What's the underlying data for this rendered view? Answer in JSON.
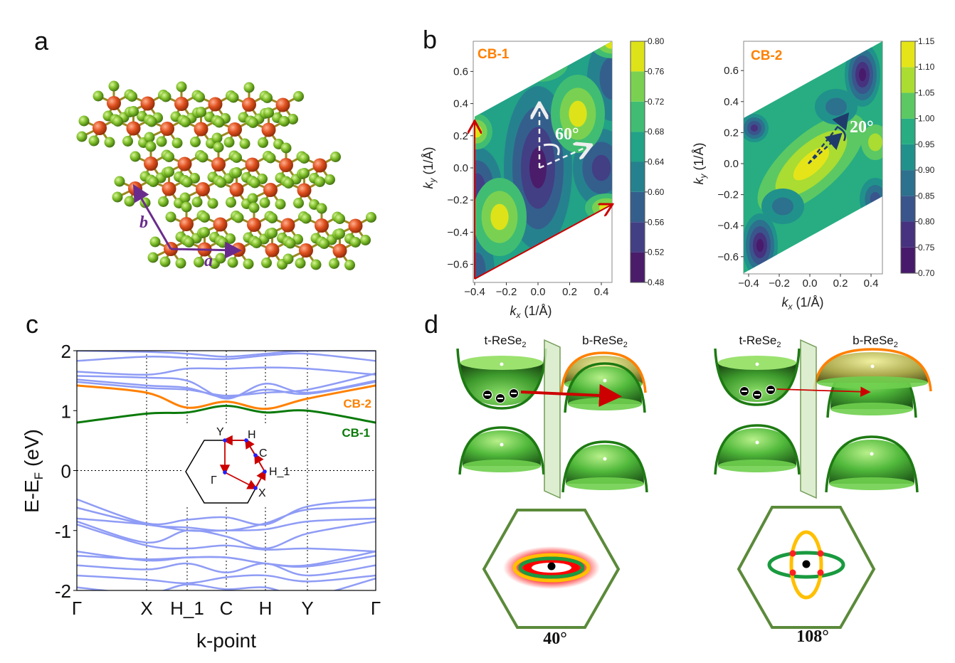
{
  "panels": {
    "a": {
      "label": "a",
      "vector_a": "a",
      "vector_b": "b",
      "colors": {
        "metal": "#e0501e",
        "chalcogen": "#7fbf2a",
        "vector": "#6a2c8c"
      }
    },
    "b": {
      "label": "b",
      "plots": [
        {
          "title": "CB-1",
          "xlabel_main": "k",
          "xlabel_sub": "x",
          "xlabel_unit": " (1/Å)",
          "ylabel_main": "k",
          "ylabel_sub": "y",
          "ylabel_unit": " (1/Å)",
          "xticks": [
            "−0.4",
            "−0.2",
            "0.0",
            "0.2",
            "0.4"
          ],
          "yticks": [
            "0.6",
            "0.4",
            "0.2",
            "0.0",
            "−0.2",
            "−0.4",
            "−0.6"
          ],
          "colorbar_ticks": [
            "0.80",
            "0.76",
            "0.72",
            "0.68",
            "0.64",
            "0.60",
            "0.56",
            "0.52",
            "0.48"
          ],
          "angle_label": "60°"
        },
        {
          "title": "CB-2",
          "xlabel_main": "k",
          "xlabel_sub": "x",
          "xlabel_unit": " (1/Å)",
          "ylabel_main": "k",
          "ylabel_sub": "y",
          "ylabel_unit": " (1/Å)",
          "xticks": [
            "−0.4",
            "−0.2",
            "0.0",
            "0.2",
            "0.4"
          ],
          "yticks": [
            "0.6",
            "0.4",
            "0.2",
            "0.0",
            "−0.2",
            "−0.4",
            "−0.6"
          ],
          "colorbar_ticks": [
            "1.15",
            "1.10",
            "1.05",
            "1.00",
            "0.95",
            "0.90",
            "0.85",
            "0.80",
            "0.75",
            "0.70"
          ],
          "angle_label": "20°"
        }
      ]
    },
    "c": {
      "label": "c",
      "inset_labels": {
        "Y": "Y",
        "H": "H",
        "C": "C",
        "H_1": "H_1",
        "Gamma": "Γ",
        "X": "X"
      }
    },
    "d": {
      "label": "d",
      "left": {
        "t_label": "t-ReSe",
        "b_label": "b-ReSe",
        "sub": "2",
        "angle": "40°"
      },
      "right": {
        "t_label": "t-ReSe",
        "b_label": "b-ReSe",
        "sub": "2",
        "angle": "108°"
      }
    }
  },
  "chart_data": {
    "type": "line",
    "xlabel": "k-point",
    "ylabel": "E-E",
    "ylabel_sub": "F",
    "ylabel_unit": " (eV)",
    "ylim": [
      -2,
      2
    ],
    "yticks": [
      "2",
      "1",
      "0",
      "-1",
      "-2"
    ],
    "categories": [
      "Γ",
      "X",
      "H_1",
      "C",
      "H",
      "Y",
      "Γ"
    ],
    "grid": "dotted at k-points and 0",
    "series": [
      {
        "name": "CB-2",
        "color": "#ff8000",
        "values": [
          1.42,
          1.3,
          1.05,
          1.15,
          1.03,
          1.2,
          1.42
        ]
      },
      {
        "name": "CB-1",
        "color": "#0a7a0a",
        "values": [
          0.8,
          0.95,
          0.97,
          1.08,
          0.97,
          1.0,
          0.8
        ]
      },
      {
        "color": "#8f9cf5",
        "values": [
          1.83,
          1.9,
          1.88,
          1.86,
          1.92,
          1.95,
          1.83
        ]
      },
      {
        "color": "#8f9cf5",
        "values": [
          1.65,
          1.6,
          1.7,
          1.7,
          1.72,
          1.7,
          1.6
        ]
      },
      {
        "color": "#8f9cf5",
        "values": [
          1.58,
          1.55,
          1.5,
          1.2,
          1.45,
          1.3,
          1.5
        ]
      },
      {
        "color": "#8f9cf5",
        "values": [
          1.52,
          1.42,
          1.38,
          1.22,
          1.35,
          1.28,
          1.48
        ]
      },
      {
        "color": "#8f9cf5",
        "values": [
          1.48,
          1.38,
          1.35,
          1.25,
          1.3,
          1.35,
          1.62
        ]
      },
      {
        "color": "#8f9cf5",
        "values": [
          2.0,
          1.98,
          1.95,
          1.9,
          1.95,
          2.0,
          2.0
        ]
      },
      {
        "color": "#8f9cf5",
        "values": [
          -0.48,
          -0.88,
          -0.82,
          -0.78,
          -0.9,
          -0.6,
          -0.48
        ]
      },
      {
        "color": "#8f9cf5",
        "values": [
          -0.62,
          -0.9,
          -0.95,
          -1.0,
          -0.88,
          -0.65,
          -0.62
        ]
      },
      {
        "color": "#8f9cf5",
        "values": [
          -0.8,
          -0.9,
          -1.0,
          -1.0,
          -0.98,
          -0.85,
          -0.8
        ]
      },
      {
        "color": "#8f9cf5",
        "values": [
          -0.85,
          -1.2,
          -1.0,
          -1.1,
          -1.3,
          -1.05,
          -0.85
        ]
      },
      {
        "color": "#8f9cf5",
        "values": [
          -0.9,
          -1.25,
          -1.3,
          -1.25,
          -1.32,
          -1.3,
          -1.35
        ]
      },
      {
        "color": "#8f9cf5",
        "values": [
          -1.35,
          -1.5,
          -1.45,
          -1.45,
          -1.55,
          -1.58,
          -1.35
        ]
      },
      {
        "color": "#8f9cf5",
        "values": [
          -1.42,
          -1.48,
          -1.45,
          -1.45,
          -1.55,
          -1.6,
          -1.42
        ]
      },
      {
        "color": "#8f9cf5",
        "values": [
          -1.58,
          -1.65,
          -1.55,
          -1.7,
          -1.55,
          -1.75,
          -1.58
        ]
      },
      {
        "color": "#8f9cf5",
        "values": [
          -1.75,
          -1.82,
          -1.88,
          -1.78,
          -1.75,
          -1.85,
          -1.75
        ]
      },
      {
        "color": "#8f9cf5",
        "values": [
          -1.95,
          -2.05,
          -1.9,
          -1.98,
          -1.95,
          -2.1,
          -1.8
        ]
      }
    ]
  }
}
